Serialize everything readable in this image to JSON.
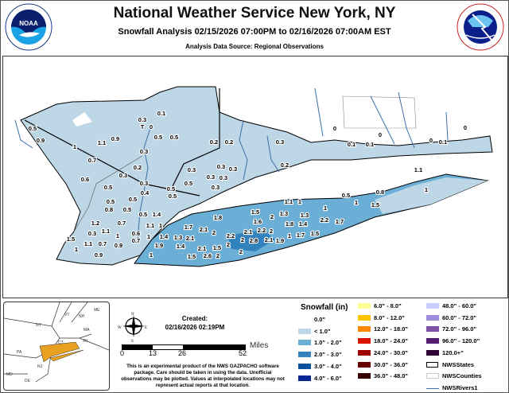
{
  "header": {
    "title": "National Weather Service New York, NY",
    "subtitle": "Snowfall Analysis 02/15/2026 07:00PM to 02/16/2026 07:00AM EST",
    "source": "Analysis Data Source: Regional Observations",
    "left_logo": "NOAA",
    "right_logo": "NATIONAL WEATHER SERVICE"
  },
  "map": {
    "observations": [
      "0.5",
      "0.9",
      "1",
      "1.1",
      "0.9",
      "0.7",
      "0.6",
      "0.5",
      "0.3",
      "0.3",
      "0.1",
      "T",
      "0",
      "0.5",
      "0.5",
      "0.3",
      "0.2",
      "0.3",
      "0.4",
      "0.5",
      "0.2",
      "0.2",
      "0.3",
      "0.2",
      "0.3",
      "0.3",
      "0.3",
      "0.3",
      "0.3",
      "0.3",
      "0.5",
      "0",
      "0",
      "0.1",
      "0.1",
      "0",
      "0",
      "0.1",
      "1.1",
      "1",
      "0.5",
      "0.8",
      "0.5",
      "0.5",
      "0.5",
      "0.8",
      "0.5",
      "0.5",
      "1.4",
      "1.2",
      "0.7",
      "1.1",
      "1",
      "1.7",
      "2.1",
      "2",
      "0.3",
      "1.1",
      "1",
      "0.6",
      "1.5",
      "1.1",
      "0.7",
      "0.9",
      "0.7",
      "1",
      "1.4",
      "1.3",
      "2.1",
      "1",
      "1.9",
      "1.4",
      "2.1",
      "1.5",
      "0.9",
      "1",
      "1.5",
      "2.6",
      "2",
      "1.8",
      "1.1",
      "1",
      "1",
      "1.5",
      "1.5",
      "1.3",
      "1.3",
      "1",
      "2",
      "1.6",
      "1.8",
      "1.4",
      "2.2",
      "1.7",
      "2.1",
      "2.2",
      "2",
      "2.2",
      "2.1",
      "1.9",
      "1",
      "1.7",
      "1.5",
      "2",
      "2.8",
      "2",
      "2"
    ]
  },
  "inset": {
    "states": [
      "NY",
      "VT",
      "NH",
      "ME",
      "MA",
      "CT",
      "RI",
      "PA",
      "NJ",
      "MD",
      "DE"
    ],
    "highlight_color": "#e8a020"
  },
  "created": {
    "label": "Created:",
    "datetime": "02/16/2026 02:19PM"
  },
  "compass": {
    "n": "N",
    "s": "S",
    "e": "E",
    "w": "W"
  },
  "scale_bar": {
    "ticks": [
      "0",
      "13",
      "26",
      "52"
    ],
    "unit": "Miles"
  },
  "disclaimer": "This is an experimental product of the NWS GAZPACHO software package. Care should be taken in using the data. Unofficial observations may be plotted. Values at interpolated locations may not represent actual reports at that location.",
  "legend": {
    "title": "Snowfall (in)",
    "items": [
      {
        "label": "0.0\"",
        "color": "#ffffff"
      },
      {
        "label": "< 1.0\"",
        "color": "#bdd7e7"
      },
      {
        "label": "1.0\" - 2.0\"",
        "color": "#6baed6"
      },
      {
        "label": "2.0\" - 3.0\"",
        "color": "#3182bd"
      },
      {
        "label": "3.0\" - 4.0\"",
        "color": "#08519c"
      },
      {
        "label": "4.0\" - 6.0\"",
        "color": "#082694"
      },
      {
        "label": "6.0\" - 8.0\"",
        "color": "#ffff96"
      },
      {
        "label": "8.0\" - 12.0\"",
        "color": "#ffc400"
      },
      {
        "label": "12.0\" - 18.0\"",
        "color": "#ff8700"
      },
      {
        "label": "18.0\" - 24.0\"",
        "color": "#db1400"
      },
      {
        "label": "24.0\" - 30.0\"",
        "color": "#9e0000"
      },
      {
        "label": "30.0\" - 36.0\"",
        "color": "#690000"
      },
      {
        "label": "36.0\" - 48.0\"",
        "color": "#360000"
      },
      {
        "label": "48.0\" - 60.0\"",
        "color": "#ccccff"
      },
      {
        "label": "60.0\" - 72.0\"",
        "color": "#9f8cd8"
      },
      {
        "label": "72.0\" - 96.0\"",
        "color": "#7c52a5"
      },
      {
        "label": "96.0\" - 120.0\"",
        "color": "#561c72"
      },
      {
        "label": "120.0+\"",
        "color": "#2e0033"
      },
      {
        "label": "NWSStates",
        "color": "#000000"
      },
      {
        "label": "NWSCounties",
        "color": "#cccccc"
      },
      {
        "label": "NWSRivers1",
        "color": "#3a6fa8"
      }
    ]
  }
}
